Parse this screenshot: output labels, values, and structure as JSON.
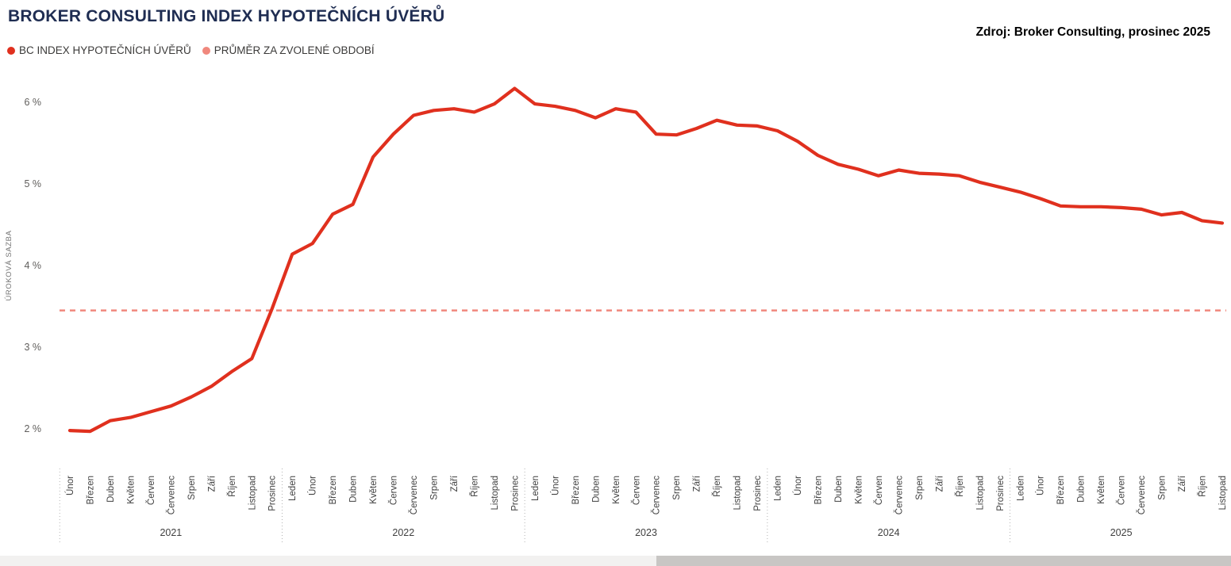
{
  "header": {
    "title": "BROKER CONSULTING INDEX HYPOTEČNÍCH ÚVĚRŮ",
    "source": "Zdroj: Broker Consulting, prosinec 2025"
  },
  "legend": {
    "items": [
      {
        "label": "BC INDEX HYPOTEČNÍCH ÚVĚRŮ",
        "color": "#e0301e"
      },
      {
        "label": "PRŮMĚR ZA ZVOLENÉ OBDOBÍ",
        "color": "#f0887d"
      }
    ]
  },
  "chart_data": {
    "type": "line",
    "title": "BROKER CONSULTING INDEX HYPOTEČNÍCH ÚVĚRŮ",
    "ylabel": "ÚROKOVÁ SAZBA",
    "ylim": [
      1.8,
      6.4
    ],
    "yticks": [
      2,
      3,
      4,
      5,
      6
    ],
    "ytick_labels": [
      "2 %",
      "3 %",
      "4 %",
      "5 %",
      "6 %"
    ],
    "grid": false,
    "legend_position": "top-left",
    "average_line": {
      "label": "PRŮMĚR ZA ZVOLENÉ OBDOBÍ",
      "value": 3.45,
      "color": "#f0887d",
      "style": "dashed"
    },
    "series": [
      {
        "name": "BC INDEX HYPOTEČNÍCH ÚVĚRŮ",
        "color": "#e0301e",
        "values": [
          1.98,
          1.97,
          2.1,
          2.14,
          2.21,
          2.28,
          2.39,
          2.52,
          2.7,
          2.86,
          3.47,
          4.14,
          4.27,
          4.63,
          4.75,
          5.33,
          5.61,
          5.84,
          5.9,
          5.92,
          5.88,
          5.98,
          6.17,
          5.98,
          5.95,
          5.9,
          5.81,
          5.92,
          5.88,
          5.61,
          5.6,
          5.68,
          5.78,
          5.72,
          5.71,
          5.65,
          5.52,
          5.35,
          5.24,
          5.18,
          5.1,
          5.17,
          5.13,
          5.12,
          5.1,
          5.02,
          4.96,
          4.9,
          4.82,
          4.73,
          4.72,
          4.72,
          4.71,
          4.69,
          4.62,
          4.65,
          4.55,
          4.52
        ]
      }
    ],
    "categories": [
      "Únor",
      "Březen",
      "Duben",
      "Květen",
      "Červen",
      "Červenec",
      "Srpen",
      "Září",
      "Říjen",
      "Listopad",
      "Prosinec",
      "Leden",
      "Únor",
      "Březen",
      "Duben",
      "Květen",
      "Červen",
      "Červenec",
      "Srpen",
      "Září",
      "Říjen",
      "Listopad",
      "Prosinec",
      "Leden",
      "Únor",
      "Březen",
      "Duben",
      "Květen",
      "Červen",
      "Červenec",
      "Srpen",
      "Září",
      "Říjen",
      "Listopad",
      "Prosinec",
      "Leden",
      "Únor",
      "Březen",
      "Duben",
      "Květen",
      "Červen",
      "Červenec",
      "Srpen",
      "Září",
      "Říjen",
      "Listopad",
      "Prosinec",
      "Leden",
      "Únor",
      "Březen",
      "Duben",
      "Květen",
      "Červen",
      "Červenec",
      "Srpen",
      "Září",
      "Říjen",
      "Listopad"
    ],
    "year_groups": [
      {
        "label": "2021",
        "count": 11
      },
      {
        "label": "2022",
        "count": 12
      },
      {
        "label": "2023",
        "count": 12
      },
      {
        "label": "2024",
        "count": 12
      },
      {
        "label": "2025",
        "count": 11
      }
    ]
  }
}
